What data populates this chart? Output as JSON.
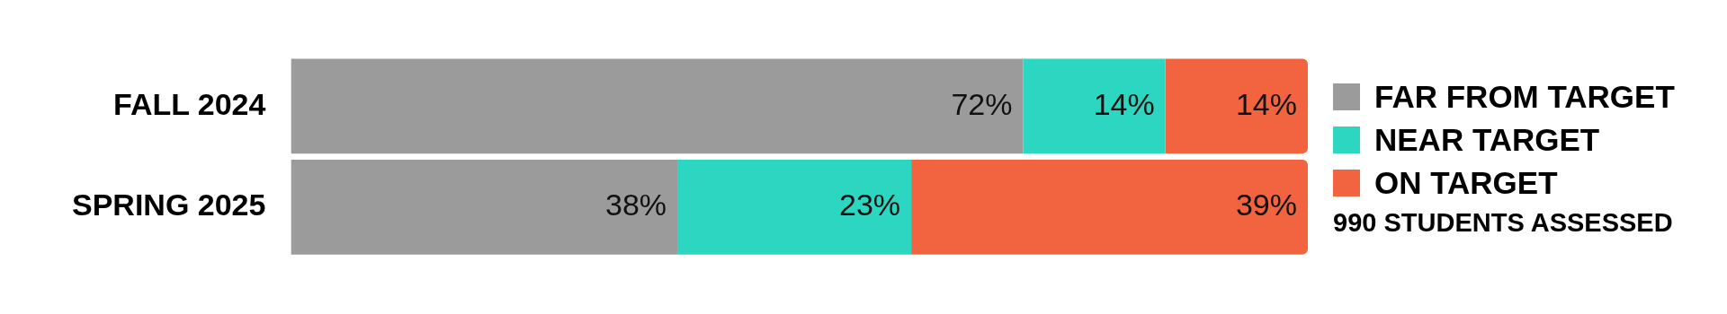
{
  "chart_data": {
    "type": "bar",
    "orientation": "horizontal",
    "stacked": true,
    "categories": [
      "FALL 2024",
      "SPRING 2025"
    ],
    "series": [
      {
        "name": "FAR FROM TARGET",
        "color": "#9b9b9b",
        "values": [
          72,
          38
        ],
        "value_labels": [
          "72%",
          "38%"
        ]
      },
      {
        "name": "NEAR TARGET",
        "color": "#2cd6c1",
        "values": [
          14,
          23
        ],
        "value_labels": [
          "14%",
          "23%"
        ]
      },
      {
        "name": "ON TARGET",
        "color": "#f26440",
        "values": [
          14,
          39
        ],
        "value_labels": [
          "14%",
          "39%"
        ]
      }
    ],
    "xlim": [
      0,
      100
    ],
    "tick_labels": "y",
    "legend": "right",
    "annotations": [
      "990 STUDENTS ASSESSED"
    ]
  }
}
